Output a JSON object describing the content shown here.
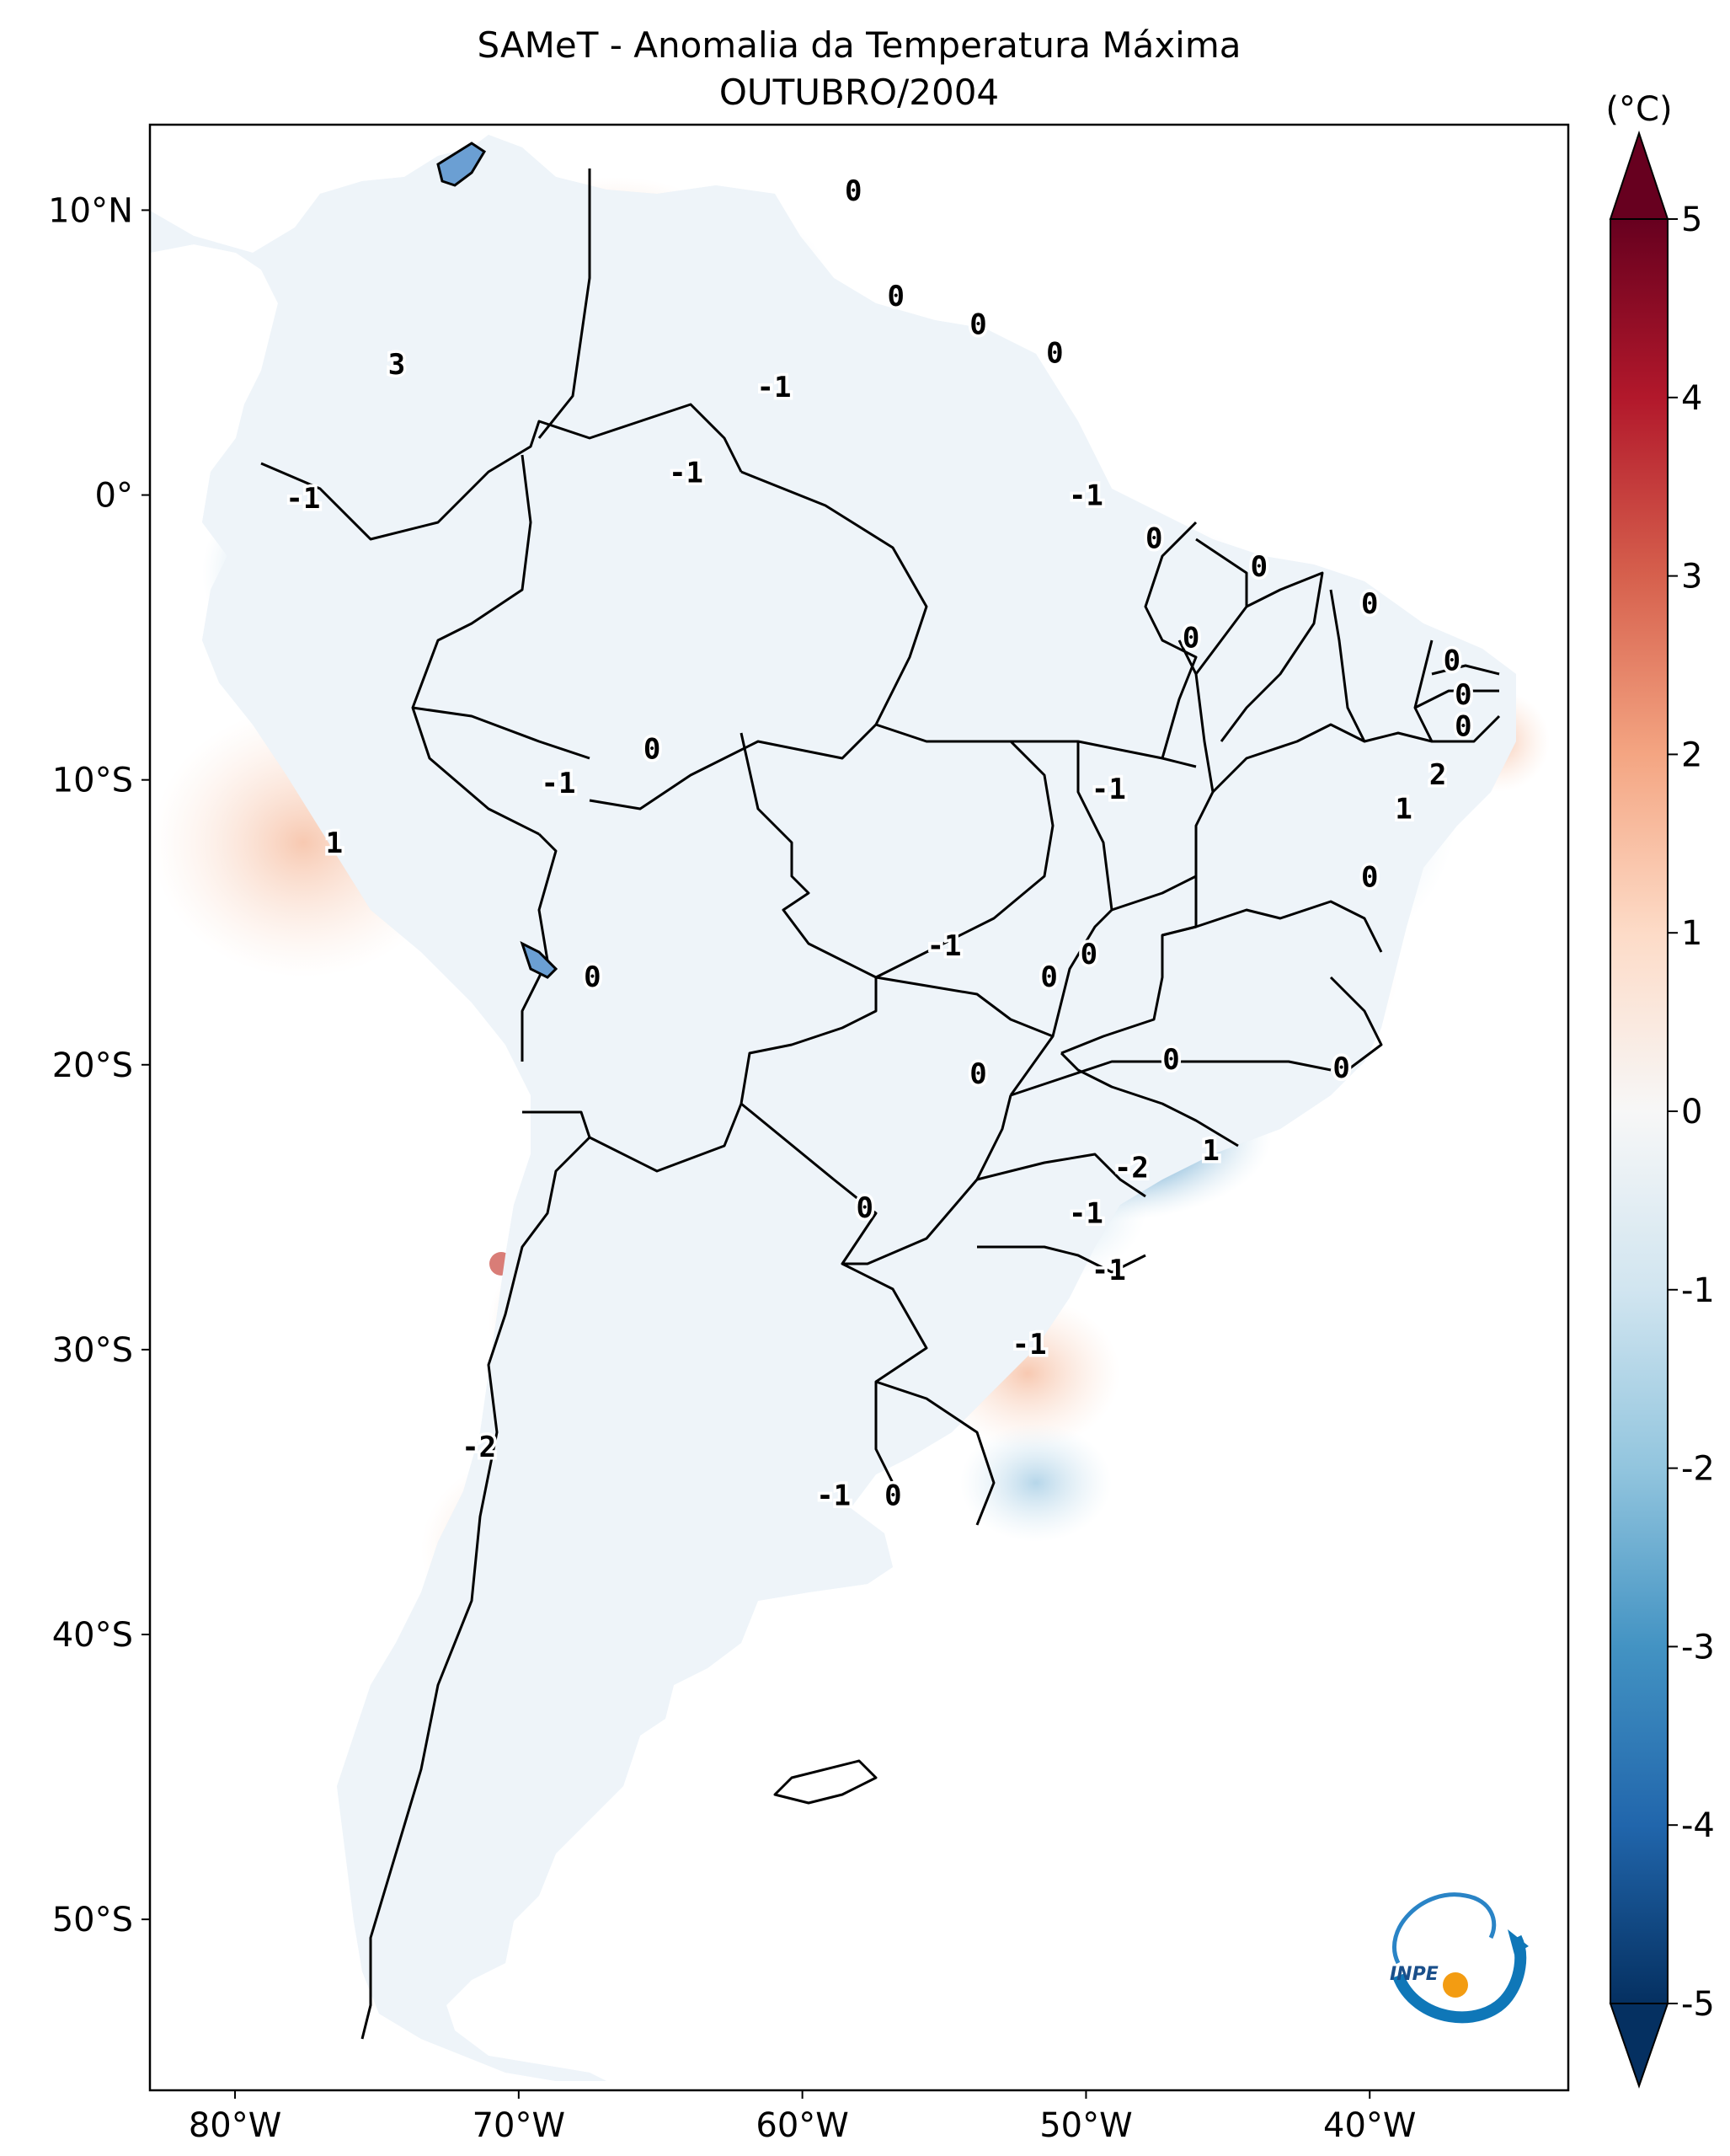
{
  "title": {
    "line1": "SAMeT - Anomalia da Temperatura Máxima",
    "line2": "OUTUBRO/2004"
  },
  "map": {
    "lon_min": -83,
    "lon_max": -33,
    "lat_min": -56,
    "lat_max": 13,
    "lon_ticks": [
      {
        "value": -80,
        "label": "80°W"
      },
      {
        "value": -70,
        "label": "70°W"
      },
      {
        "value": -60,
        "label": "60°W"
      },
      {
        "value": -50,
        "label": "50°W"
      },
      {
        "value": -40,
        "label": "40°W"
      }
    ],
    "lat_ticks": [
      {
        "value": 10,
        "label": "10°N"
      },
      {
        "value": 0,
        "label": "0°"
      },
      {
        "value": -10,
        "label": "10°S"
      },
      {
        "value": -20,
        "label": "20°S"
      },
      {
        "value": -30,
        "label": "30°S"
      },
      {
        "value": -40,
        "label": "40°S"
      },
      {
        "value": -50,
        "label": "50°S"
      }
    ],
    "contour_labels": [
      {
        "lon": -58.2,
        "lat": 10.7,
        "text": "0"
      },
      {
        "lon": -64.1,
        "lat": 0.8,
        "text": "-1"
      },
      {
        "lon": -61.0,
        "lat": 3.8,
        "text": "-1"
      },
      {
        "lon": -56.7,
        "lat": 7.0,
        "text": "0"
      },
      {
        "lon": -53.8,
        "lat": 6.0,
        "text": "0"
      },
      {
        "lon": -51.1,
        "lat": 5.0,
        "text": "0"
      },
      {
        "lon": -74.3,
        "lat": 4.6,
        "text": "3"
      },
      {
        "lon": -77.6,
        "lat": -0.1,
        "text": "-1"
      },
      {
        "lon": -50.0,
        "lat": 0.0,
        "text": "-1"
      },
      {
        "lon": -47.6,
        "lat": -1.5,
        "text": "0"
      },
      {
        "lon": -43.9,
        "lat": -2.5,
        "text": "0"
      },
      {
        "lon": -40.0,
        "lat": -3.8,
        "text": "0"
      },
      {
        "lon": -46.3,
        "lat": -5.0,
        "text": "0"
      },
      {
        "lon": -37.1,
        "lat": -5.8,
        "text": "0"
      },
      {
        "lon": -36.7,
        "lat": -7.0,
        "text": "0"
      },
      {
        "lon": -36.7,
        "lat": -8.1,
        "text": "0"
      },
      {
        "lon": -37.6,
        "lat": -9.8,
        "text": "2"
      },
      {
        "lon": -38.8,
        "lat": -11.0,
        "text": "1"
      },
      {
        "lon": -40.0,
        "lat": -13.4,
        "text": "0"
      },
      {
        "lon": -49.2,
        "lat": -10.3,
        "text": "-1"
      },
      {
        "lon": -65.3,
        "lat": -8.9,
        "text": "0"
      },
      {
        "lon": -68.6,
        "lat": -10.1,
        "text": "-1"
      },
      {
        "lon": -76.5,
        "lat": -12.2,
        "text": "1"
      },
      {
        "lon": -67.4,
        "lat": -16.9,
        "text": "0"
      },
      {
        "lon": -55.0,
        "lat": -15.8,
        "text": "-1"
      },
      {
        "lon": -49.9,
        "lat": -16.1,
        "text": "0"
      },
      {
        "lon": -51.3,
        "lat": -16.9,
        "text": "0"
      },
      {
        "lon": -53.8,
        "lat": -20.3,
        "text": "0"
      },
      {
        "lon": -47.0,
        "lat": -19.8,
        "text": "0"
      },
      {
        "lon": -41.0,
        "lat": -20.1,
        "text": "0"
      },
      {
        "lon": -45.6,
        "lat": -23.0,
        "text": "1"
      },
      {
        "lon": -48.4,
        "lat": -23.6,
        "text": "-2"
      },
      {
        "lon": -50.0,
        "lat": -25.2,
        "text": "-1"
      },
      {
        "lon": -57.8,
        "lat": -25.0,
        "text": "0"
      },
      {
        "lon": -49.2,
        "lat": -27.2,
        "text": "-1"
      },
      {
        "lon": -52.0,
        "lat": -29.8,
        "text": "-1"
      },
      {
        "lon": -71.4,
        "lat": -33.4,
        "text": "-2"
      },
      {
        "lon": -58.9,
        "lat": -35.1,
        "text": "-1"
      },
      {
        "lon": -56.8,
        "lat": -35.1,
        "text": "0"
      }
    ],
    "logo_text": "INPE"
  },
  "colorbar": {
    "unit": "(°C)",
    "min": -5,
    "max": 5,
    "ticks": [
      {
        "value": 5,
        "label": "5"
      },
      {
        "value": 4,
        "label": "4"
      },
      {
        "value": 3,
        "label": "3"
      },
      {
        "value": 2,
        "label": "2"
      },
      {
        "value": 1,
        "label": "1"
      },
      {
        "value": 0,
        "label": "0"
      },
      {
        "value": -1,
        "label": "-1"
      },
      {
        "value": -2,
        "label": "-2"
      },
      {
        "value": -3,
        "label": "-3"
      },
      {
        "value": -4,
        "label": "-4"
      },
      {
        "value": -5,
        "label": "-5"
      }
    ],
    "colors": [
      "#053061",
      "#2166ac",
      "#4393c3",
      "#92c5de",
      "#d1e5f0",
      "#f7f7f7",
      "#fddbc7",
      "#f4a582",
      "#d6604d",
      "#b2182b",
      "#67001f"
    ]
  }
}
